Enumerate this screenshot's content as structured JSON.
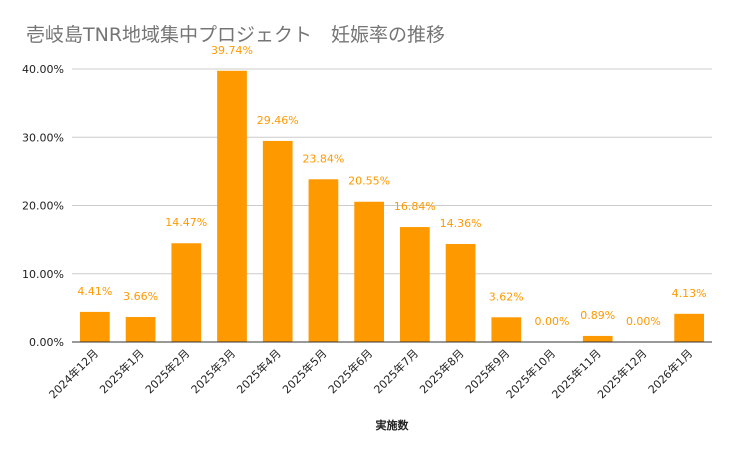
{
  "chart_data": {
    "type": "bar",
    "title": "壱岐島TNR地域集中プロジェクト　妊娠率の推移",
    "xlabel": "実施数",
    "ylabel": "",
    "ylim": [
      0,
      40
    ],
    "yticks": [
      "0.00%",
      "10.00%",
      "20.00%",
      "30.00%",
      "40.00%"
    ],
    "ytick_values": [
      0,
      10,
      20,
      30,
      40
    ],
    "grid": true,
    "bar_color": "#ff9900",
    "label_color": "#ff9900",
    "grid_color": "#cccccc",
    "categories": [
      "2024年12月",
      "2025年1月",
      "2025年2月",
      "2025年3月",
      "2025年4月",
      "2025年5月",
      "2025年6月",
      "2025年7月",
      "2025年8月",
      "2025年9月",
      "2025年10月",
      "2025年11月",
      "2025年12月",
      "2026年1月"
    ],
    "values": [
      4.41,
      3.66,
      14.47,
      39.74,
      29.46,
      23.84,
      20.55,
      16.84,
      14.36,
      3.62,
      0.0,
      0.89,
      0.0,
      4.13
    ],
    "data_labels": [
      "4.41%",
      "3.66%",
      "14.47%",
      "39.74%",
      "29.46%",
      "23.84%",
      "20.55%",
      "16.84%",
      "14.36%",
      "3.62%",
      "0.00%",
      "0.89%",
      "0.00%",
      "4.13%"
    ]
  }
}
